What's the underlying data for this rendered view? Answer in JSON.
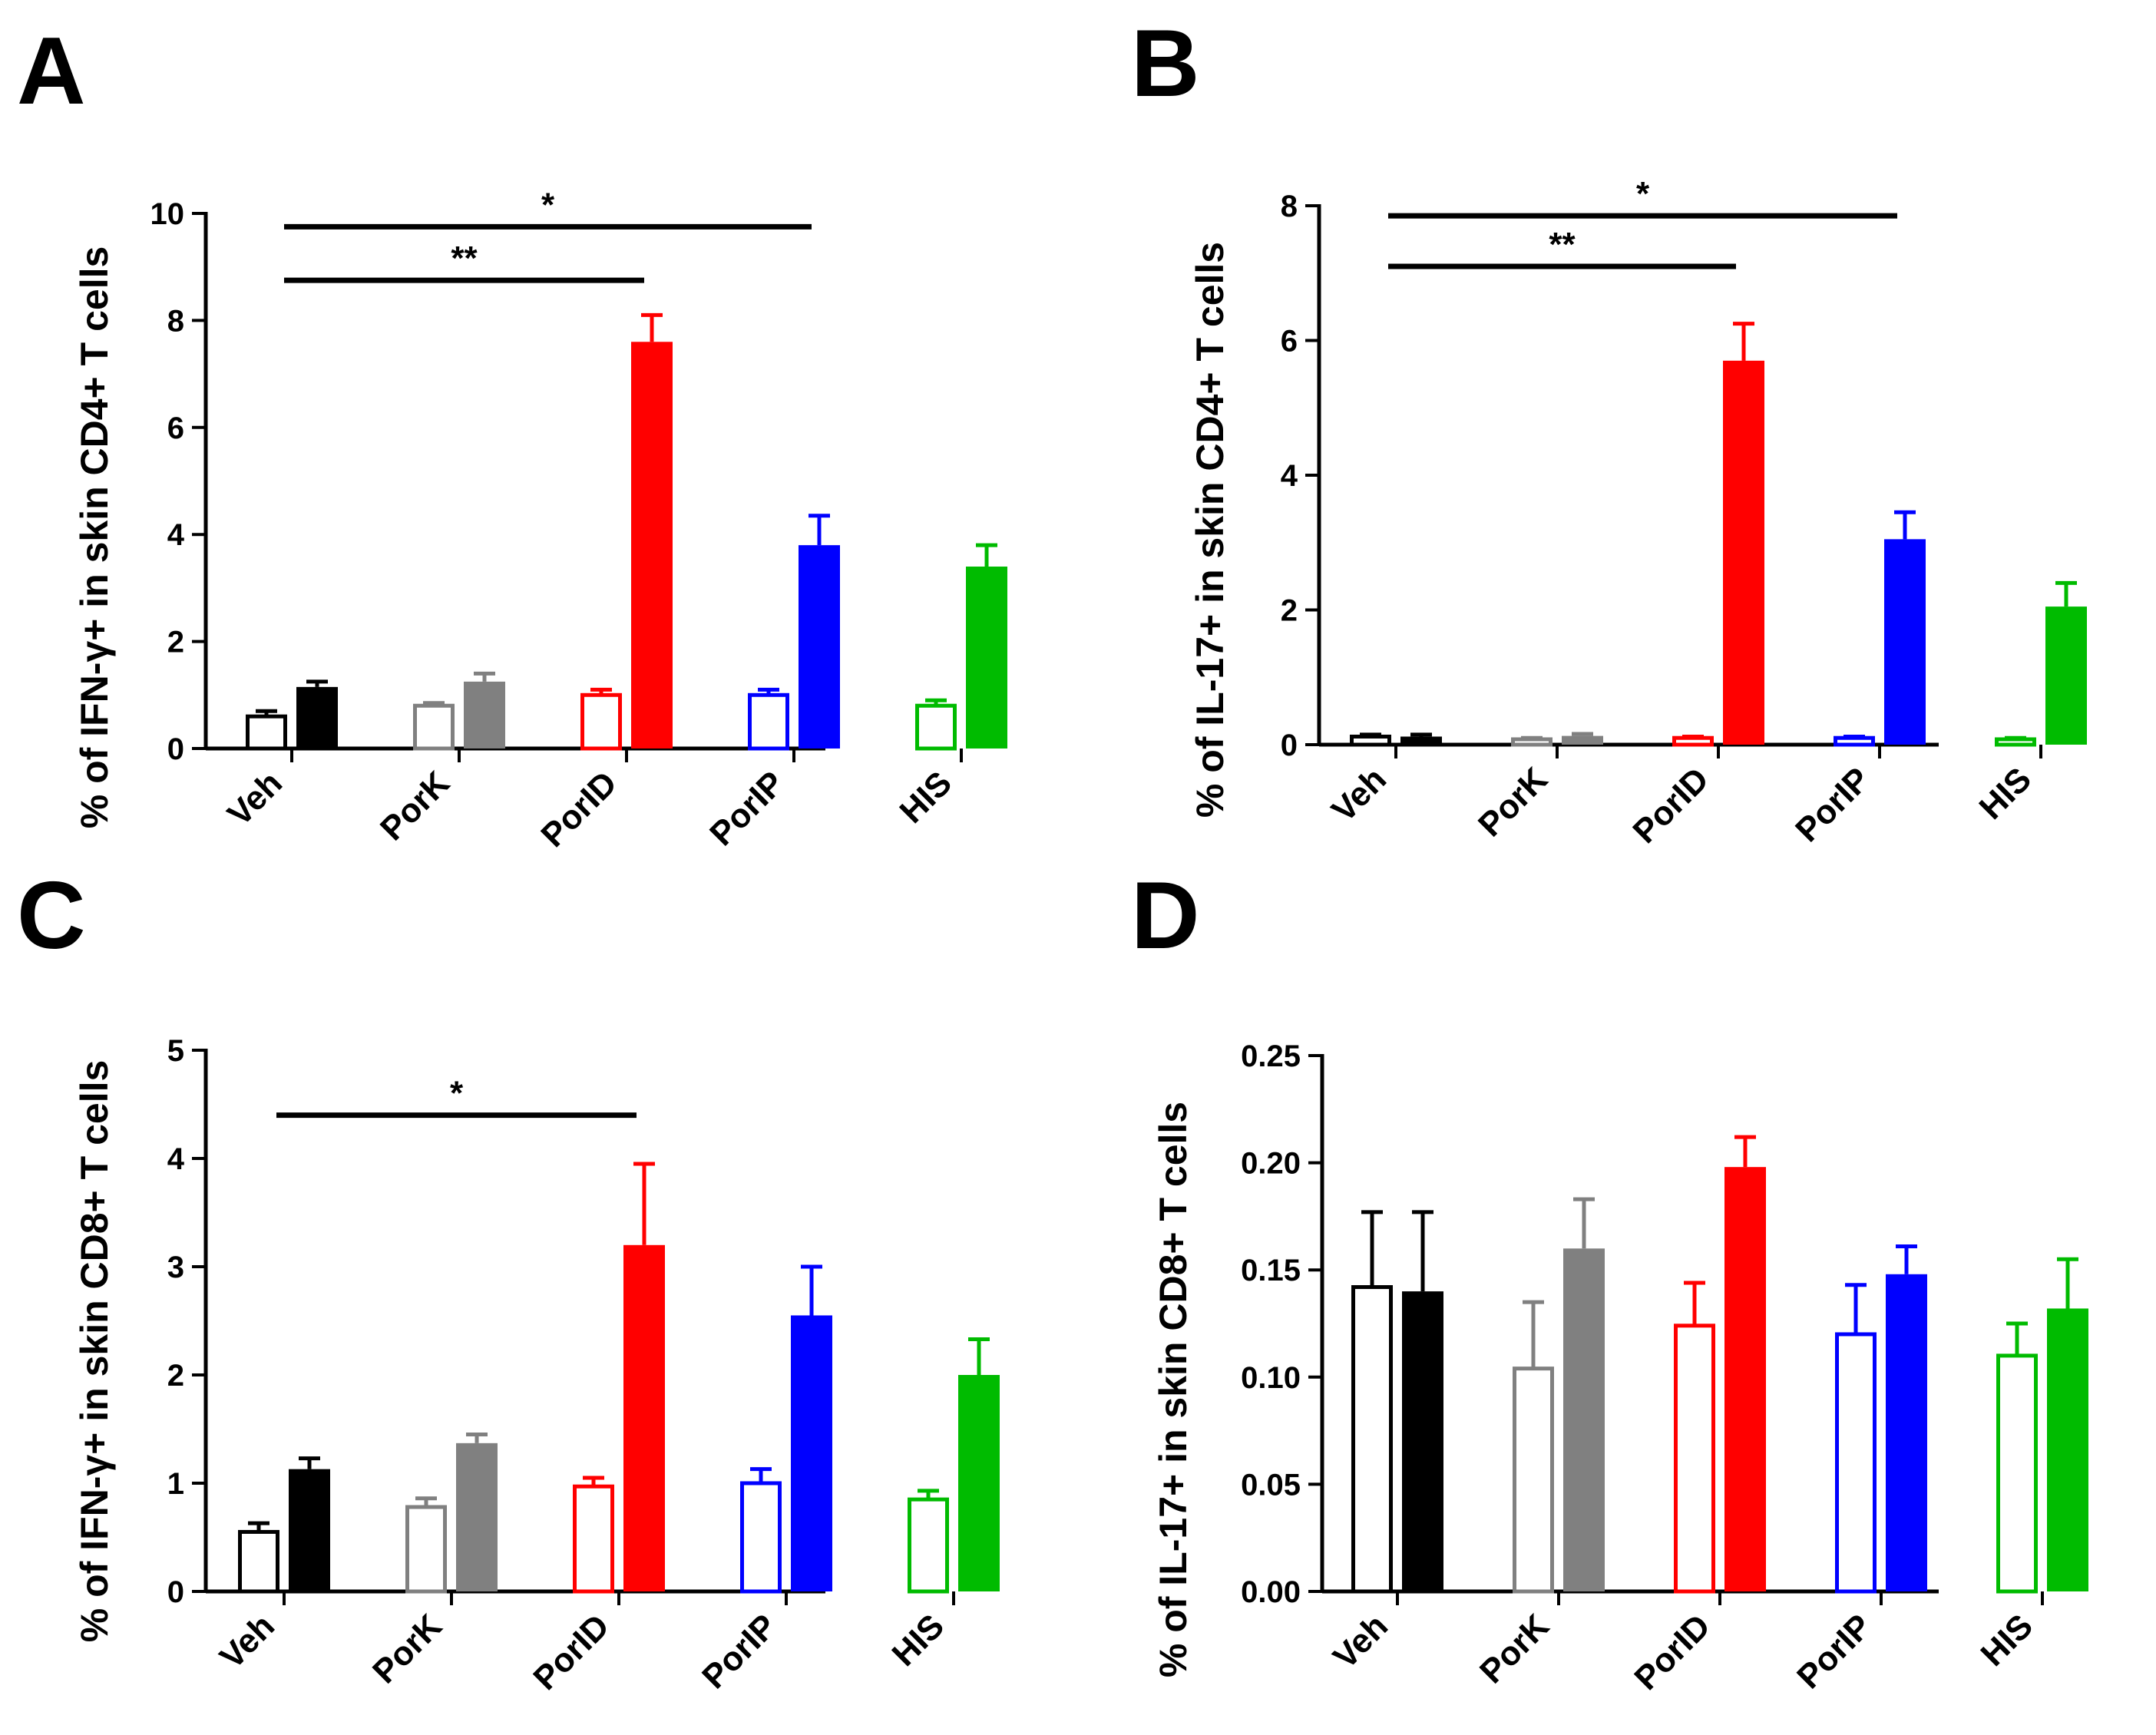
{
  "chart_data": [
    {
      "panel": "A",
      "type": "bar",
      "ylabel": "% of IFN-γ+ in skin CD4+ T cells",
      "categories": [
        "Veh",
        "PorK",
        "PorID",
        "PorIP",
        "HIS"
      ],
      "ylim": [
        0,
        10
      ],
      "yticks": [
        "0",
        "2",
        "4",
        "6",
        "8",
        "10"
      ],
      "series": [
        {
          "name": "open",
          "fill": "none",
          "values": [
            0.6,
            0.8,
            1.0,
            1.0,
            0.8
          ],
          "errors": [
            0.1,
            0.05,
            0.1,
            0.1,
            0.1
          ]
        },
        {
          "name": "filled",
          "fill": "solid",
          "values": [
            1.15,
            1.25,
            7.6,
            3.8,
            3.4
          ],
          "errors": [
            0.1,
            0.15,
            0.5,
            0.55,
            0.4
          ]
        }
      ],
      "colors": [
        "#000000",
        "#808080",
        "#ff0000",
        "#0000ff",
        "#00bb00"
      ],
      "significance": [
        {
          "label": "*",
          "from": 0,
          "to": 3,
          "y": 9.75
        },
        {
          "label": "**",
          "from": 0,
          "to": 2,
          "y": 8.75
        }
      ]
    },
    {
      "panel": "B",
      "type": "bar",
      "ylabel": "% of IL-17+ in skin CD4+ T cells",
      "categories": [
        "Veh",
        "PorK",
        "PorID",
        "PorIP",
        "HIS"
      ],
      "ylim": [
        0,
        8
      ],
      "yticks": [
        "0",
        "2",
        "4",
        "6",
        "8"
      ],
      "series": [
        {
          "name": "open",
          "fill": "none",
          "values": [
            0.12,
            0.08,
            0.1,
            0.1,
            0.08
          ],
          "errors": [
            0.03,
            0.02,
            0.02,
            0.02,
            0.02
          ]
        },
        {
          "name": "filled",
          "fill": "solid",
          "values": [
            0.12,
            0.13,
            5.7,
            3.05,
            2.05
          ],
          "errors": [
            0.03,
            0.03,
            0.55,
            0.4,
            0.35
          ]
        }
      ],
      "colors": [
        "#000000",
        "#808080",
        "#ff0000",
        "#0000ff",
        "#00bb00"
      ],
      "significance": [
        {
          "label": "*",
          "from": 0,
          "to": 3,
          "y": 7.85
        },
        {
          "label": "**",
          "from": 0,
          "to": 2,
          "y": 7.1
        }
      ]
    },
    {
      "panel": "C",
      "type": "bar",
      "ylabel": "% of IFN-γ+ in skin CD8+ T cells",
      "categories": [
        "Veh",
        "PorK",
        "PorID",
        "PorIP",
        "HIS"
      ],
      "ylim": [
        0,
        5
      ],
      "yticks": [
        "0",
        "1",
        "2",
        "3",
        "4",
        "5"
      ],
      "series": [
        {
          "name": "open",
          "fill": "none",
          "values": [
            0.55,
            0.78,
            0.97,
            1.0,
            0.85
          ],
          "errors": [
            0.08,
            0.08,
            0.08,
            0.13,
            0.08
          ]
        },
        {
          "name": "filled",
          "fill": "solid",
          "values": [
            1.13,
            1.37,
            3.2,
            2.55,
            2.0
          ],
          "errors": [
            0.1,
            0.08,
            0.75,
            0.45,
            0.33
          ]
        }
      ],
      "colors": [
        "#000000",
        "#808080",
        "#ff0000",
        "#0000ff",
        "#00bb00"
      ],
      "significance": [
        {
          "label": "*",
          "from": 0,
          "to": 2,
          "y": 4.4
        }
      ]
    },
    {
      "panel": "D",
      "type": "bar",
      "ylabel": "% of IL-17+ in skin CD8+ T cells",
      "categories": [
        "Veh",
        "PorK",
        "PorID",
        "PorIP",
        "HIS"
      ],
      "ylim": [
        0,
        0.25
      ],
      "yticks": [
        "0.00",
        "0.05",
        "0.10",
        "0.15",
        "0.20",
        "0.25"
      ],
      "series": [
        {
          "name": "open",
          "fill": "none",
          "values": [
            0.142,
            0.104,
            0.124,
            0.12,
            0.11
          ],
          "errors": [
            0.035,
            0.031,
            0.02,
            0.023,
            0.015
          ]
        },
        {
          "name": "filled",
          "fill": "solid",
          "values": [
            0.14,
            0.16,
            0.198,
            0.148,
            0.132
          ],
          "errors": [
            0.037,
            0.023,
            0.014,
            0.013,
            0.023
          ]
        }
      ],
      "colors": [
        "#000000",
        "#808080",
        "#ff0000",
        "#0000ff",
        "#00bb00"
      ],
      "significance": []
    }
  ]
}
